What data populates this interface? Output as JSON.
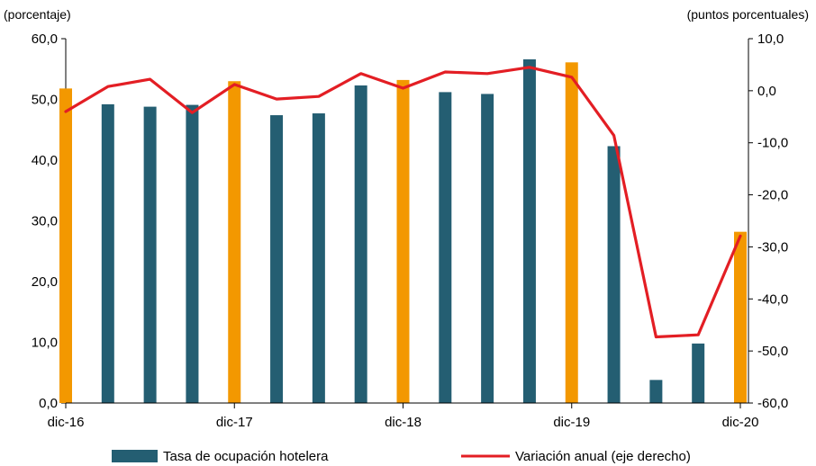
{
  "chart_data": {
    "type": "bar",
    "left_unit": "(porcentaje)",
    "right_unit": "(puntos porcentuales)",
    "left_axis": {
      "min": 0,
      "max": 60,
      "ticks": [
        0,
        10,
        20,
        30,
        40,
        50,
        60
      ],
      "tick_labels": [
        "0,0",
        "10,0",
        "20,0",
        "30,0",
        "40,0",
        "50,0",
        "60,0"
      ]
    },
    "right_axis": {
      "min": -60,
      "max": 10,
      "ticks": [
        -60,
        -50,
        -40,
        -30,
        -20,
        -10,
        0,
        10
      ],
      "tick_labels": [
        "-60,0",
        "-50,0",
        "-40,0",
        "-30,0",
        "-20,0",
        "-10,0",
        "0,0",
        "10,0"
      ]
    },
    "x_labels": [
      {
        "index": 0,
        "label": "dic-16"
      },
      {
        "index": 4,
        "label": "dic-17"
      },
      {
        "index": 8,
        "label": "dic-18"
      },
      {
        "index": 12,
        "label": "dic-19"
      },
      {
        "index": 16,
        "label": "dic-20"
      }
    ],
    "periods": 17,
    "highlight_indices": [
      0,
      4,
      8,
      12,
      16
    ],
    "series": [
      {
        "name": "Tasa de ocupación hotelera",
        "kind": "bar",
        "axis": "left",
        "color": "#245e72",
        "highlight_color": "#f39800",
        "values": [
          51.8,
          49.2,
          48.8,
          49.1,
          53.0,
          47.4,
          47.7,
          52.3,
          53.2,
          51.2,
          50.9,
          56.6,
          56.1,
          42.3,
          3.8,
          9.8,
          28.2
        ]
      },
      {
        "name": "Variación anual (eje derecho)",
        "kind": "line",
        "axis": "right",
        "color": "#e31e24",
        "values": [
          -4.0,
          0.8,
          2.2,
          -4.2,
          1.2,
          -1.6,
          -1.1,
          3.3,
          0.5,
          3.6,
          3.3,
          4.5,
          2.6,
          -8.6,
          -47.3,
          -46.9,
          -27.9
        ]
      }
    ],
    "legend_position": "bottom"
  }
}
